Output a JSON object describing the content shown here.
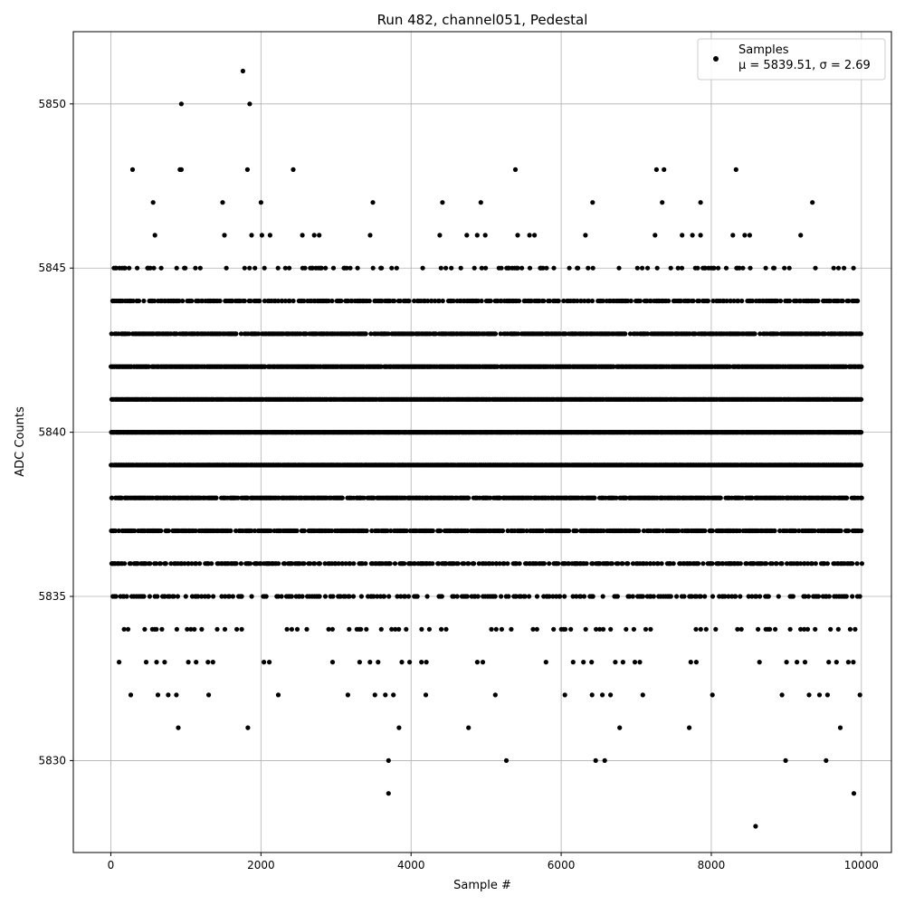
{
  "chart_data": {
    "type": "scatter",
    "title": "Run 482, channel051, Pedestal",
    "xlabel": "Sample #",
    "ylabel": "ADC Counts",
    "xlim": [
      -500,
      10400
    ],
    "ylim": [
      5827.2,
      5852.2
    ],
    "xticks": [
      0,
      2000,
      4000,
      6000,
      8000,
      10000
    ],
    "yticks": [
      5830,
      5835,
      5840,
      5845,
      5850
    ],
    "grid": true,
    "legend": {
      "position": "top-right",
      "label": "Samples",
      "stats": "μ = 5839.51, σ = 2.69"
    },
    "stats": {
      "mean": 5839.51,
      "sigma": 2.69
    },
    "marker_color": "#000000",
    "n_samples": 10000,
    "rows": [
      {
        "y": 5844,
        "density": 0.55
      },
      {
        "y": 5843,
        "density": 0.75
      },
      {
        "y": 5842,
        "density": 0.9
      },
      {
        "y": 5841,
        "density": 0.95
      },
      {
        "y": 5840,
        "density": 0.97
      },
      {
        "y": 5839,
        "density": 0.92
      },
      {
        "y": 5838,
        "density": 0.8
      },
      {
        "y": 5837,
        "density": 0.65
      },
      {
        "y": 5836,
        "density": 0.5
      },
      {
        "y": 5835,
        "density": 0.3
      },
      {
        "y": 5845,
        "density": 0.18
      },
      {
        "y": 5834,
        "density": 0.1
      },
      {
        "y": 5846,
        "density": 0.05
      },
      {
        "y": 5833,
        "density": 0.06
      },
      {
        "y": 5847,
        "density": 0.015
      },
      {
        "y": 5832,
        "density": 0.03
      },
      {
        "y": 5831,
        "density": 0.012
      }
    ],
    "outliers": [
      {
        "x": 1760,
        "y": 5851
      },
      {
        "x": 940,
        "y": 5850
      },
      {
        "x": 1850,
        "y": 5850
      },
      {
        "x": 290,
        "y": 5848
      },
      {
        "x": 920,
        "y": 5848
      },
      {
        "x": 940,
        "y": 5848
      },
      {
        "x": 1820,
        "y": 5848
      },
      {
        "x": 2430,
        "y": 5848
      },
      {
        "x": 5390,
        "y": 5848
      },
      {
        "x": 7270,
        "y": 5848
      },
      {
        "x": 7370,
        "y": 5848
      },
      {
        "x": 8330,
        "y": 5848
      },
      {
        "x": 3700,
        "y": 5830
      },
      {
        "x": 5270,
        "y": 5830
      },
      {
        "x": 6460,
        "y": 5830
      },
      {
        "x": 6580,
        "y": 5830
      },
      {
        "x": 8990,
        "y": 5830
      },
      {
        "x": 9530,
        "y": 5830
      },
      {
        "x": 3700,
        "y": 5829
      },
      {
        "x": 9900,
        "y": 5829
      },
      {
        "x": 8590,
        "y": 5828
      }
    ]
  }
}
